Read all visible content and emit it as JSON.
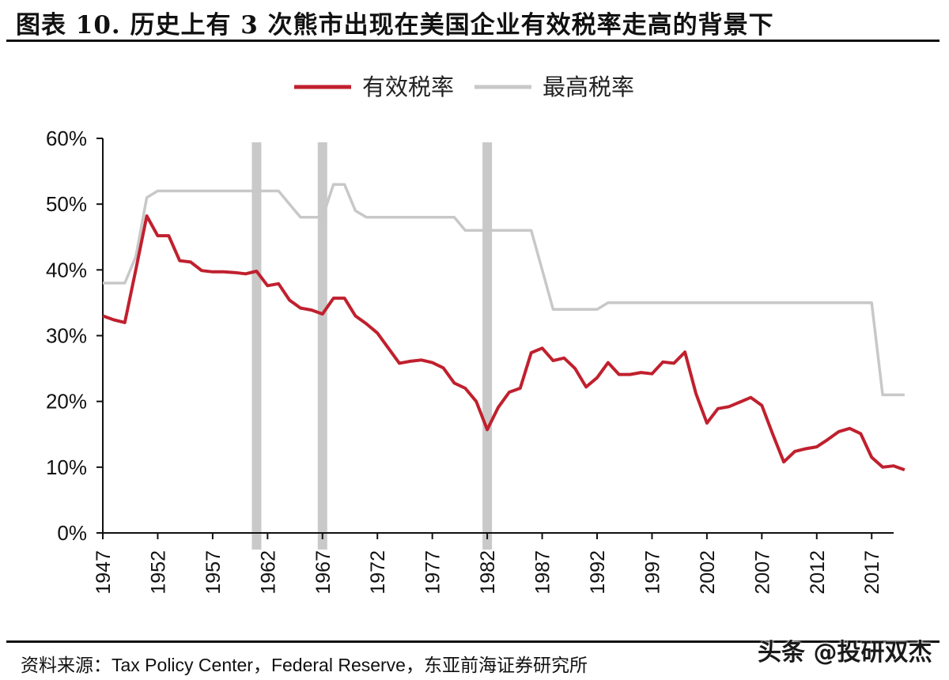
{
  "title": "图表 10. 历史上有 3 次熊市出现在美国企业有效税率走高的背景下",
  "source": "资料来源：Tax Policy Center，Federal Reserve，东亚前海证券研究所",
  "watermark": "头条 @投研双杰",
  "chart_data": {
    "type": "line",
    "xlabel": "",
    "ylabel": "",
    "xlim": [
      1947,
      2019
    ],
    "ylim": [
      0,
      60
    ],
    "y_ticks": [
      "0%",
      "10%",
      "20%",
      "30%",
      "40%",
      "50%",
      "60%"
    ],
    "y_tick_values": [
      0,
      10,
      20,
      30,
      40,
      50,
      60
    ],
    "x_ticks": [
      "1947",
      "1952",
      "1957",
      "1962",
      "1967",
      "1972",
      "1977",
      "1982",
      "1987",
      "1992",
      "1997",
      "2002",
      "2007",
      "2012",
      "2017"
    ],
    "legend_position": "top-center",
    "shaded_periods": [
      1961,
      1967,
      1982
    ],
    "series": [
      {
        "name": "有效税率",
        "color": "#c0202e",
        "x": [
          1947,
          1948,
          1949,
          1950,
          1951,
          1952,
          1953,
          1954,
          1955,
          1956,
          1957,
          1958,
          1959,
          1960,
          1961,
          1962,
          1963,
          1964,
          1965,
          1966,
          1967,
          1968,
          1969,
          1970,
          1971,
          1972,
          1973,
          1974,
          1975,
          1976,
          1977,
          1978,
          1979,
          1980,
          1981,
          1982,
          1983,
          1984,
          1985,
          1986,
          1987,
          1988,
          1989,
          1990,
          1991,
          1992,
          1993,
          1994,
          1995,
          1996,
          1997,
          1998,
          1999,
          2000,
          2001,
          2002,
          2003,
          2004,
          2005,
          2006,
          2007,
          2008,
          2009,
          2010,
          2011,
          2012,
          2013,
          2014,
          2015,
          2016,
          2017,
          2018,
          2019,
          2020
        ],
        "values": [
          33.0,
          32.4,
          32.0,
          40.0,
          48.2,
          45.2,
          45.2,
          41.4,
          41.2,
          39.9,
          39.7,
          39.7,
          39.6,
          39.4,
          39.8,
          37.6,
          37.9,
          35.4,
          34.2,
          33.9,
          33.3,
          35.7,
          35.7,
          33.0,
          31.8,
          30.4,
          28.1,
          25.8,
          26.1,
          26.3,
          25.9,
          25.1,
          22.8,
          22.0,
          20.0,
          15.7,
          19.1,
          21.4,
          22.0,
          27.4,
          28.1,
          26.2,
          26.6,
          25.0,
          22.2,
          23.6,
          25.9,
          24.1,
          24.1,
          24.4,
          24.2,
          26.0,
          25.8,
          27.5,
          21.2,
          16.7,
          18.9,
          19.2,
          19.9,
          20.6,
          19.4,
          15.0,
          10.8,
          12.4,
          12.8,
          13.1,
          14.2,
          15.4,
          15.9,
          15.1,
          11.5,
          10.0,
          10.2,
          9.6
        ]
      },
      {
        "name": "最高税率",
        "color": "#c8c8c8",
        "x": [
          1947,
          1949,
          1950,
          1951,
          1952,
          1953,
          1962,
          1963,
          1964,
          1965,
          1966,
          1967,
          1968,
          1969,
          1970,
          1971,
          1972,
          1978,
          1979,
          1980,
          1986,
          1987,
          1988,
          1992,
          1993,
          1994,
          2017,
          2018,
          2020
        ],
        "values": [
          38,
          38,
          42,
          51,
          52,
          52,
          52,
          52,
          50,
          48,
          48,
          48,
          53,
          53,
          49,
          48,
          48,
          48,
          48,
          46,
          46,
          40,
          34,
          34,
          35,
          35,
          35,
          21,
          21
        ]
      }
    ]
  }
}
